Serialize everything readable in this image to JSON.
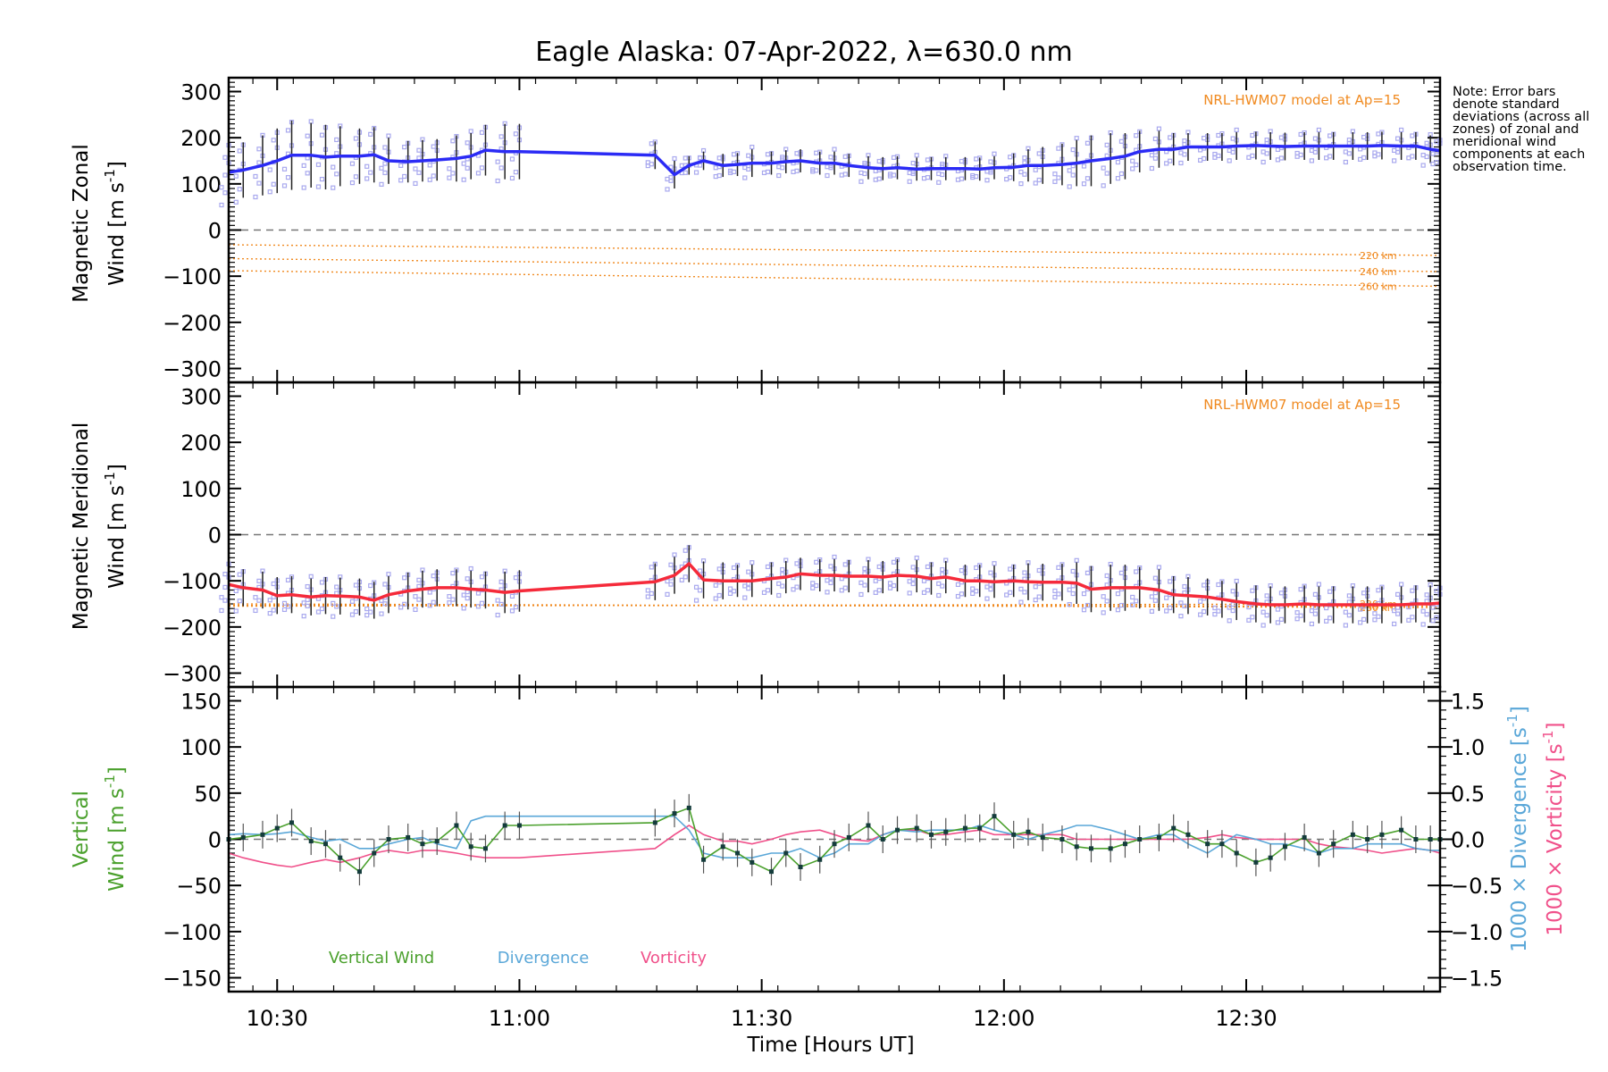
{
  "title": "Eagle Alaska: 07-Apr-2022, λ=630.0 nm",
  "note": "Note: Error bars denote standard deviations (across all zones) of zonal and meridional wind components at each observation time.",
  "x_axis": {
    "label": "Time [Hours UT]",
    "range": [
      10.4,
      12.9
    ],
    "ticks": [
      10.5,
      11.0,
      11.5,
      12.0,
      12.5
    ],
    "tick_labels": [
      "10:30",
      "11:00",
      "11:30",
      "12:00",
      "12:30"
    ]
  },
  "colors": {
    "zonal": "#2b2bf5",
    "meridional": "#f52a3a",
    "vertical": "#4aa02c",
    "divergence": "#5aa7d8",
    "vorticity": "#f0508a",
    "model": "#f08a20",
    "zone_points": "#a9a9ee",
    "error_bar": "#222222"
  },
  "chart_data": [
    {
      "type": "line",
      "panel": "zonal",
      "ylabel_line1": "Magnetic Zonal",
      "ylabel_line2": "Wind [m s",
      "ylabel_sup": "-1",
      "ylabel_end": "]",
      "ylim": [
        -330,
        330
      ],
      "yticks": [
        300,
        200,
        100,
        0,
        -100,
        -200,
        -300
      ],
      "ytick_labels": [
        "300",
        "200",
        "100",
        "0",
        "−100",
        "−200",
        "−300"
      ],
      "model_label": "NRL-HWM07 model at Ap=15",
      "model_series": [
        {
          "name": "220 km",
          "x": [
            10.4,
            12.9
          ],
          "values": [
            -32,
            -55
          ]
        },
        {
          "name": "240 km",
          "x": [
            10.4,
            12.9
          ],
          "values": [
            -62,
            -90
          ]
        },
        {
          "name": "260 km",
          "x": [
            10.4,
            12.9
          ],
          "values": [
            -88,
            -122
          ]
        }
      ],
      "x": [
        10.4,
        10.43,
        10.47,
        10.5,
        10.53,
        10.57,
        10.6,
        10.63,
        10.67,
        10.7,
        10.73,
        10.77,
        10.8,
        10.83,
        10.87,
        10.9,
        10.93,
        10.97,
        11.0,
        11.28,
        11.32,
        11.35,
        11.38,
        11.42,
        11.45,
        11.48,
        11.52,
        11.55,
        11.58,
        11.62,
        11.65,
        11.68,
        11.72,
        11.75,
        11.78,
        11.82,
        11.85,
        11.88,
        11.92,
        11.95,
        11.98,
        12.02,
        12.05,
        12.08,
        12.12,
        12.15,
        12.18,
        12.22,
        12.25,
        12.28,
        12.32,
        12.35,
        12.38,
        12.42,
        12.45,
        12.48,
        12.52,
        12.55,
        12.58,
        12.62,
        12.65,
        12.68,
        12.72,
        12.75,
        12.78,
        12.82,
        12.85,
        12.88,
        12.9
      ],
      "values": [
        125,
        130,
        140,
        150,
        162,
        162,
        158,
        160,
        160,
        163,
        150,
        148,
        150,
        152,
        155,
        160,
        173,
        170,
        170,
        162,
        120,
        140,
        150,
        140,
        142,
        145,
        145,
        148,
        150,
        145,
        145,
        140,
        135,
        133,
        135,
        132,
        133,
        133,
        133,
        132,
        135,
        136,
        140,
        140,
        142,
        145,
        150,
        155,
        160,
        170,
        175,
        175,
        180,
        180,
        180,
        182,
        183,
        182,
        181,
        182,
        182,
        182,
        182,
        182,
        183,
        182,
        182,
        175,
        172
      ],
      "error": [
        55,
        60,
        65,
        70,
        75,
        70,
        70,
        65,
        60,
        60,
        50,
        45,
        45,
        45,
        50,
        50,
        55,
        60,
        60,
        30,
        30,
        20,
        20,
        25,
        25,
        30,
        25,
        25,
        25,
        25,
        25,
        25,
        25,
        25,
        25,
        25,
        25,
        25,
        25,
        25,
        25,
        30,
        35,
        40,
        45,
        50,
        55,
        55,
        50,
        45,
        40,
        35,
        30,
        30,
        30,
        30,
        30,
        30,
        30,
        30,
        30,
        30,
        30,
        30,
        30,
        30,
        30,
        30,
        30
      ]
    },
    {
      "type": "line",
      "panel": "meridional",
      "ylabel_line1": "Magnetic Meridional",
      "ylabel_line2": "Wind [m s",
      "ylabel_sup": "-1",
      "ylabel_end": "]",
      "ylim": [
        -330,
        330
      ],
      "yticks": [
        300,
        200,
        100,
        0,
        -100,
        -200,
        -300
      ],
      "ytick_labels": [
        "300",
        "200",
        "100",
        "0",
        "−100",
        "−200",
        "−300"
      ],
      "model_label": "NRL-HWM07 model at Ap=15",
      "model_series": [
        {
          "name": "220 km",
          "x": [
            10.4,
            12.9
          ],
          "values": [
            -155,
            -150
          ]
        },
        {
          "name": "240 km",
          "x": [
            10.4,
            12.9
          ],
          "values": [
            -153,
            -155
          ]
        },
        {
          "name": "260 km",
          "x": [
            10.4,
            12.9
          ],
          "values": [
            -150,
            -158
          ]
        }
      ],
      "x": [
        10.4,
        10.43,
        10.47,
        10.5,
        10.53,
        10.57,
        10.6,
        10.63,
        10.67,
        10.7,
        10.73,
        10.77,
        10.8,
        10.83,
        10.87,
        10.9,
        10.93,
        10.97,
        11.0,
        11.28,
        11.32,
        11.35,
        11.38,
        11.42,
        11.45,
        11.48,
        11.52,
        11.55,
        11.58,
        11.62,
        11.65,
        11.68,
        11.72,
        11.75,
        11.78,
        11.82,
        11.85,
        11.88,
        11.92,
        11.95,
        11.98,
        12.02,
        12.05,
        12.08,
        12.12,
        12.15,
        12.18,
        12.22,
        12.25,
        12.28,
        12.32,
        12.35,
        12.38,
        12.42,
        12.45,
        12.48,
        12.52,
        12.55,
        12.58,
        12.62,
        12.65,
        12.68,
        12.72,
        12.75,
        12.78,
        12.82,
        12.85,
        12.88,
        12.9
      ],
      "values": [
        -108,
        -115,
        -120,
        -132,
        -130,
        -135,
        -132,
        -133,
        -135,
        -142,
        -130,
        -122,
        -118,
        -115,
        -115,
        -118,
        -120,
        -125,
        -122,
        -102,
        -88,
        -63,
        -98,
        -100,
        -100,
        -100,
        -95,
        -92,
        -85,
        -88,
        -88,
        -90,
        -90,
        -92,
        -88,
        -90,
        -95,
        -92,
        -100,
        -100,
        -102,
        -100,
        -102,
        -103,
        -103,
        -105,
        -118,
        -115,
        -115,
        -115,
        -120,
        -130,
        -132,
        -135,
        -140,
        -145,
        -150,
        -152,
        -152,
        -150,
        -152,
        -152,
        -152,
        -152,
        -152,
        -152,
        -150,
        -150,
        -148
      ],
      "error": [
        40,
        40,
        40,
        40,
        40,
        40,
        40,
        40,
        40,
        40,
        40,
        40,
        40,
        40,
        40,
        40,
        40,
        45,
        45,
        40,
        40,
        40,
        40,
        40,
        35,
        35,
        35,
        35,
        35,
        35,
        35,
        35,
        35,
        35,
        35,
        35,
        35,
        35,
        35,
        35,
        35,
        35,
        40,
        40,
        40,
        45,
        50,
        50,
        50,
        45,
        45,
        40,
        40,
        40,
        40,
        40,
        40,
        40,
        40,
        40,
        40,
        40,
        40,
        40,
        40,
        40,
        40,
        40,
        40
      ]
    },
    {
      "type": "line",
      "panel": "vertical",
      "ylabel_line1": "Vertical",
      "ylabel_line2": "Wind [m s",
      "ylabel_sup": "-1",
      "ylabel_end": "]",
      "ylim": [
        -165,
        165
      ],
      "yticks": [
        150,
        100,
        50,
        0,
        -50,
        -100,
        -150
      ],
      "ytick_labels": [
        "150",
        "100",
        "50",
        "0",
        "−50",
        "−100",
        "−150"
      ],
      "right_ylim": [
        -1.65,
        1.65
      ],
      "right_yticks": [
        1.5,
        1.0,
        0.5,
        0.0,
        -0.5,
        -1.0,
        -1.5
      ],
      "right_ytick_labels": [
        "1.5",
        "1.0",
        "0.5",
        "0.0",
        "−0.5",
        "−1.0",
        "−1.5"
      ],
      "right_label_div": "1000 × Divergence [s",
      "right_label_vort": "1000 × Vorticity [s",
      "right_label_sup": "-1",
      "right_label_end": "]",
      "legend": [
        "Vertical Wind",
        "Divergence",
        "Vorticity"
      ],
      "x": [
        10.4,
        10.43,
        10.47,
        10.5,
        10.53,
        10.57,
        10.6,
        10.63,
        10.67,
        10.7,
        10.73,
        10.77,
        10.8,
        10.83,
        10.87,
        10.9,
        10.93,
        10.97,
        11.0,
        11.28,
        11.32,
        11.35,
        11.38,
        11.42,
        11.45,
        11.48,
        11.52,
        11.55,
        11.58,
        11.62,
        11.65,
        11.68,
        11.72,
        11.75,
        11.78,
        11.82,
        11.85,
        11.88,
        11.92,
        11.95,
        11.98,
        12.02,
        12.05,
        12.08,
        12.12,
        12.15,
        12.18,
        12.22,
        12.25,
        12.28,
        12.32,
        12.35,
        12.38,
        12.42,
        12.45,
        12.48,
        12.52,
        12.55,
        12.58,
        12.62,
        12.65,
        12.68,
        12.72,
        12.75,
        12.78,
        12.82,
        12.85,
        12.88,
        12.9
      ],
      "vertical_wind": [
        0,
        2,
        5,
        12,
        18,
        -2,
        -5,
        -20,
        -35,
        -15,
        0,
        2,
        -5,
        -2,
        15,
        -8,
        -10,
        15,
        15,
        18,
        28,
        34,
        -22,
        -8,
        -15,
        -25,
        -35,
        -15,
        -30,
        -22,
        -5,
        2,
        15,
        0,
        10,
        12,
        5,
        8,
        12,
        12,
        25,
        5,
        8,
        2,
        0,
        -8,
        -10,
        -10,
        -5,
        0,
        2,
        12,
        5,
        -5,
        -5,
        -15,
        -25,
        -20,
        -8,
        2,
        -15,
        -5,
        5,
        0,
        5,
        10,
        0,
        0,
        0
      ],
      "vertical_error": [
        15,
        15,
        15,
        15,
        15,
        15,
        15,
        15,
        15,
        15,
        15,
        15,
        15,
        15,
        15,
        15,
        15,
        15,
        15,
        15,
        15,
        15,
        15,
        15,
        15,
        15,
        15,
        15,
        15,
        15,
        15,
        15,
        15,
        15,
        15,
        15,
        15,
        15,
        15,
        15,
        15,
        15,
        15,
        15,
        15,
        15,
        15,
        15,
        15,
        15,
        15,
        15,
        15,
        15,
        15,
        15,
        15,
        15,
        15,
        15,
        15,
        15,
        15,
        15,
        15,
        15,
        15,
        15,
        15
      ],
      "divergence": [
        0.05,
        0.06,
        0.05,
        0.06,
        0.08,
        0.02,
        -0.02,
        0.0,
        -0.1,
        -0.1,
        -0.05,
        0.0,
        0.02,
        -0.05,
        -0.1,
        0.2,
        0.25,
        0.25,
        0.25,
        0.25,
        0.25,
        0.1,
        -0.15,
        -0.2,
        -0.2,
        -0.2,
        -0.15,
        -0.15,
        -0.1,
        -0.2,
        -0.15,
        -0.05,
        -0.05,
        0.05,
        0.1,
        0.08,
        0.1,
        0.1,
        0.1,
        0.15,
        0.1,
        0.05,
        0.0,
        0.05,
        0.1,
        0.15,
        0.15,
        0.1,
        0.05,
        0.0,
        0.05,
        0.05,
        -0.05,
        -0.15,
        -0.05,
        0.05,
        0.0,
        -0.05,
        -0.05,
        -0.1,
        -0.15,
        -0.1,
        -0.1,
        -0.05,
        -0.05,
        -0.05,
        -0.1,
        -0.12,
        -0.12
      ],
      "vorticity": [
        -0.15,
        -0.2,
        -0.25,
        -0.28,
        -0.3,
        -0.25,
        -0.22,
        -0.25,
        -0.2,
        -0.15,
        -0.12,
        -0.15,
        -0.12,
        -0.12,
        -0.15,
        -0.18,
        -0.2,
        -0.2,
        -0.2,
        -0.1,
        0.05,
        0.15,
        0.05,
        -0.02,
        -0.02,
        -0.05,
        0.0,
        0.05,
        0.08,
        0.1,
        0.05,
        0.0,
        -0.02,
        0.05,
        0.1,
        0.1,
        0.05,
        0.05,
        0.08,
        0.1,
        0.05,
        0.05,
        0.05,
        0.05,
        0.05,
        0.0,
        0.0,
        0.0,
        0.0,
        0.0,
        0.0,
        0.0,
        0.0,
        0.02,
        0.05,
        0.02,
        0.0,
        0.0,
        0.0,
        0.0,
        -0.05,
        -0.08,
        -0.1,
        -0.12,
        -0.15,
        -0.12,
        -0.1,
        -0.12,
        -0.15
      ]
    }
  ]
}
